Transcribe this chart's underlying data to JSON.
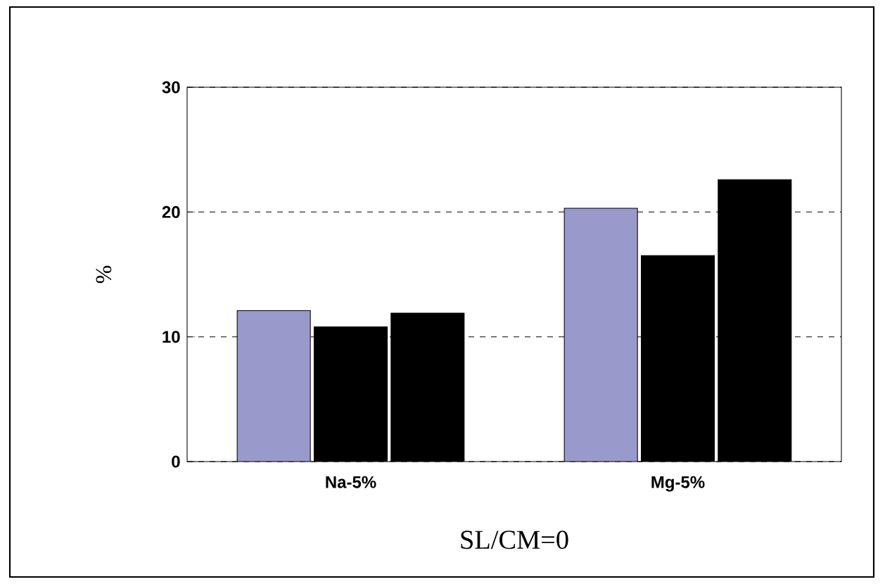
{
  "chart_data": {
    "type": "bar",
    "xlabel": "SL/CM=0",
    "ylabel": "%",
    "categories": [
      "Na-5%",
      "Mg-5%"
    ],
    "series": [
      {
        "color": "#9999cc",
        "values": [
          12.1,
          20.3
        ]
      },
      {
        "color": "#000000",
        "values": [
          10.8,
          16.5
        ]
      },
      {
        "color": "#000000",
        "values": [
          11.9,
          22.6
        ]
      }
    ],
    "ylim": [
      0,
      30
    ],
    "yticks": [
      0,
      10,
      20,
      30
    ],
    "grid": "y"
  }
}
